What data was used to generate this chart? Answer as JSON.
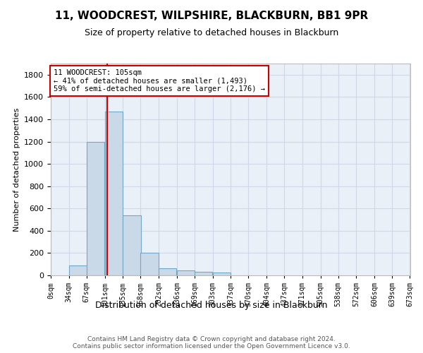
{
  "title_line1": "11, WOODCREST, WILPSHIRE, BLACKBURN, BB1 9PR",
  "title_line2": "Size of property relative to detached houses in Blackburn",
  "xlabel": "Distribution of detached houses by size in Blackburn",
  "ylabel": "Number of detached properties",
  "footer_line1": "Contains HM Land Registry data © Crown copyright and database right 2024.",
  "footer_line2": "Contains public sector information licensed under the Open Government Licence v3.0.",
  "annotation_line1": "11 WOODCREST: 105sqm",
  "annotation_line2": "← 41% of detached houses are smaller (1,493)",
  "annotation_line3": "59% of semi-detached houses are larger (2,176) →",
  "bar_width": 33.5,
  "bin_starts": [
    0,
    34,
    67,
    101,
    135,
    168,
    202,
    236,
    269,
    303,
    337,
    370,
    404,
    437,
    471,
    505,
    538,
    572,
    606,
    639
  ],
  "bar_heights": [
    0,
    90,
    1200,
    1470,
    540,
    205,
    65,
    45,
    32,
    25,
    0,
    0,
    0,
    0,
    0,
    0,
    0,
    0,
    0,
    0
  ],
  "bar_color": "#c9d9e8",
  "bar_edge_color": "#6fa8c8",
  "vline_x": 105,
  "vline_color": "#cc0000",
  "annotation_box_color": "#cc0000",
  "grid_color": "#d0d8e8",
  "background_color": "#eaf0f8",
  "ylim": [
    0,
    1900
  ],
  "xlim": [
    0,
    673
  ],
  "tick_labels": [
    "0sqm",
    "34sqm",
    "67sqm",
    "101sqm",
    "135sqm",
    "168sqm",
    "202sqm",
    "236sqm",
    "269sqm",
    "303sqm",
    "337sqm",
    "370sqm",
    "404sqm",
    "437sqm",
    "471sqm",
    "505sqm",
    "538sqm",
    "572sqm",
    "606sqm",
    "639sqm",
    "673sqm"
  ]
}
